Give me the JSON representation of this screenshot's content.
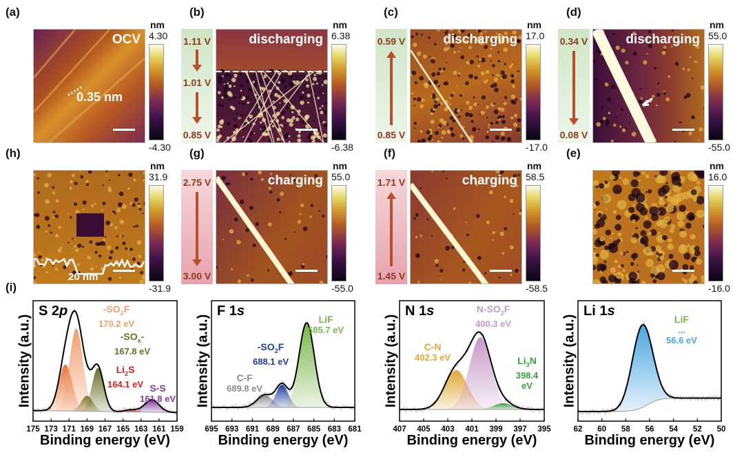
{
  "afm_panels": [
    {
      "label": "(a)",
      "condition": "OCV",
      "cbar_max": "4.30",
      "cbar_min": "-4.30",
      "unit": "nm",
      "annotation": "0.35 nm"
    },
    {
      "label": "(b)",
      "condition": "discharging",
      "cbar_max": "6.38",
      "cbar_min": "-6.38",
      "unit": "nm",
      "voltages": [
        "1.11 V",
        "1.01 V",
        "0.85 V"
      ],
      "arrow": "down"
    },
    {
      "label": "(c)",
      "condition": "discharging",
      "cbar_max": "17.0",
      "cbar_min": "-17.0",
      "unit": "nm",
      "voltages": [
        "0.59 V",
        "0.85 V"
      ],
      "arrow": "up"
    },
    {
      "label": "(d)",
      "condition": "discharging",
      "cbar_max": "55.0",
      "cbar_min": "-55.0",
      "unit": "nm",
      "voltages": [
        "0.34 V",
        "0.08 V"
      ],
      "arrow": "down"
    },
    {
      "label": "(h)",
      "condition": "",
      "cbar_max": "31.9",
      "cbar_min": "-31.9",
      "unit": "nm",
      "annotation": "20 nm"
    },
    {
      "label": "(g)",
      "condition": "charging",
      "cbar_max": "55.0",
      "cbar_min": "-55.0",
      "unit": "nm",
      "voltages": [
        "2.75 V",
        "3.00 V"
      ],
      "arrow": "down"
    },
    {
      "label": "(f)",
      "condition": "charging",
      "cbar_max": "58.5",
      "cbar_min": "-58.5",
      "unit": "nm",
      "voltages": [
        "1.71 V",
        "1.45 V"
      ],
      "arrow": "up"
    },
    {
      "label": "(e)",
      "condition": "",
      "cbar_max": "16.0",
      "cbar_min": "-16.0",
      "unit": "nm"
    }
  ],
  "xps_label": "(i)",
  "colors": {
    "voltage_text": "#8a3a1c",
    "arrow": "#b5502a",
    "discharge_bg": "#cfe6c6",
    "charge_bg": "#f0b8c0"
  },
  "chart_data": [
    {
      "type": "area",
      "title": "S 2p",
      "xlabel": "Binding energy (eV)",
      "ylabel": "Intensity (a.u.)",
      "xlim": [
        175,
        159
      ],
      "xticks": [
        175,
        173,
        171,
        169,
        167,
        165,
        163,
        161,
        159
      ],
      "baseline": 0.05,
      "components": [
        {
          "center": 171.4,
          "amp": 0.45,
          "sigma": 0.75,
          "color": "#e8773a"
        },
        {
          "center": 170.2,
          "amp": 0.8,
          "sigma": 0.75,
          "color": "#f0a070",
          "name": "-SO2F",
          "energy": "170.2 eV"
        },
        {
          "center": 169.0,
          "amp": 0.15,
          "sigma": 0.65,
          "color": "#7d7d30"
        },
        {
          "center": 167.8,
          "amp": 0.42,
          "sigma": 0.65,
          "color": "#6b7028",
          "name": "-SOx-",
          "energy": "167.8 eV"
        },
        {
          "center": 164.1,
          "amp": 0.02,
          "sigma": 0.7,
          "color": "#e02020",
          "name": "Li2S",
          "energy": "164.1 eV"
        },
        {
          "center": 161.8,
          "amp": 0.12,
          "sigma": 0.8,
          "color": "#8a3aa0",
          "name": "S-S",
          "energy": "161.8 eV"
        }
      ]
    },
    {
      "type": "area",
      "title": "F 1s",
      "xlabel": "Binding energy (eV)",
      "ylabel": "Intensity (a.u.)",
      "xlim": [
        695,
        681
      ],
      "xticks": [
        695,
        693,
        691,
        689,
        687,
        685,
        683,
        681
      ],
      "baseline": 0.08,
      "components": [
        {
          "center": 689.8,
          "amp": 0.12,
          "sigma": 0.75,
          "color": "#8c8c8c",
          "name": "C-F",
          "energy": "689.8 eV"
        },
        {
          "center": 688.1,
          "amp": 0.22,
          "sigma": 0.6,
          "color": "#1f3fa0",
          "name": "-SO2F",
          "energy": "688.1 eV"
        },
        {
          "center": 685.7,
          "amp": 0.82,
          "sigma": 0.75,
          "color": "#7ab648",
          "name": "LiF",
          "energy": "685.7 eV"
        }
      ]
    },
    {
      "type": "area",
      "title": "N 1s",
      "xlabel": "Binding energy (eV)",
      "ylabel": "Intensity (a.u.)",
      "xlim": [
        407,
        395
      ],
      "xticks": [
        407,
        405,
        403,
        401,
        399,
        397,
        395
      ],
      "baseline": 0.06,
      "components": [
        {
          "center": 402.3,
          "amp": 0.38,
          "sigma": 0.95,
          "color": "#e0a838",
          "name": "C-N",
          "energy": "402.3 eV"
        },
        {
          "center": 400.3,
          "amp": 0.7,
          "sigma": 0.9,
          "color": "#c89ac8",
          "name": "N-SO2F",
          "energy": "400.3 eV"
        },
        {
          "center": 398.4,
          "amp": 0.06,
          "sigma": 0.8,
          "color": "#3aa040",
          "name": "Li3N",
          "energy": "398.4 eV"
        }
      ]
    },
    {
      "type": "area",
      "title": "Li 1s",
      "xlabel": "Binding energy (eV)",
      "ylabel": "Intensity (a.u.)",
      "xlim": [
        62,
        50
      ],
      "xticks": [
        62,
        60,
        58,
        56,
        54,
        52,
        50
      ],
      "baseline": 0.04,
      "baseline_step": 0.13,
      "components": [
        {
          "center": 56.6,
          "amp": 0.8,
          "sigma": 0.85,
          "color": "#4aa6e0",
          "name": "LiF",
          "name_color": "#7ab648",
          "extra": "...",
          "energy": "56.6 eV"
        }
      ]
    }
  ]
}
